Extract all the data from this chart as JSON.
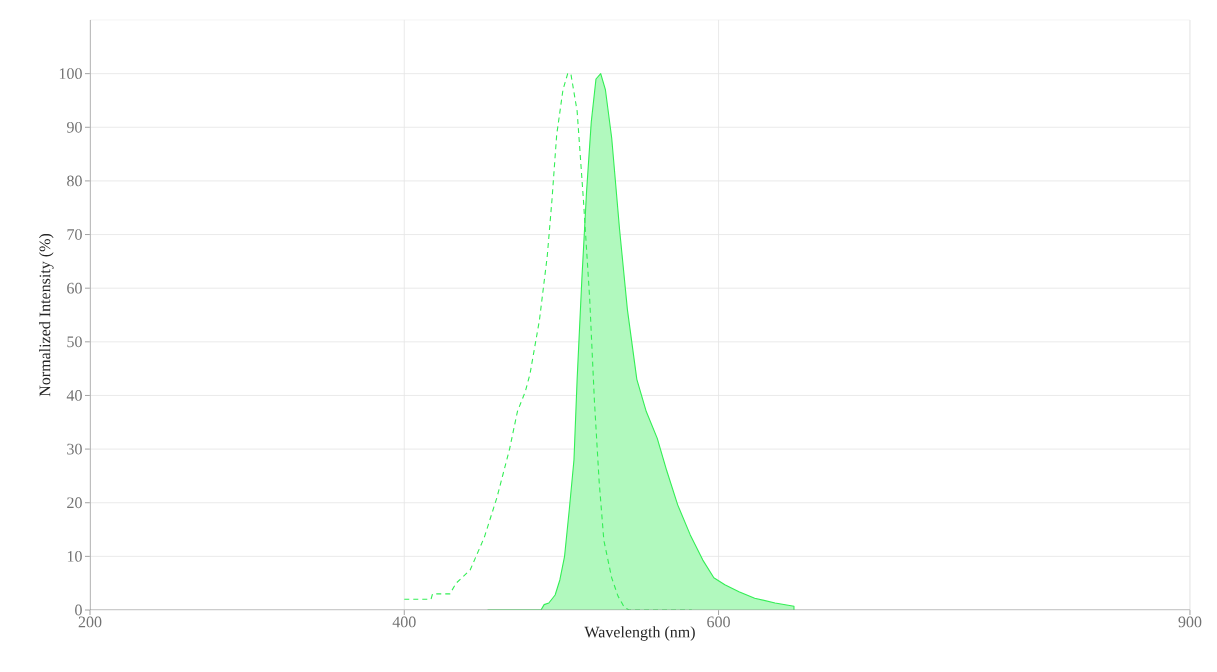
{
  "chart_data": {
    "type": "area",
    "xlabel": "Wavelength (nm)",
    "ylabel": "Normalized Intensity (%)",
    "xlim": [
      200,
      900
    ],
    "ylim": [
      0,
      110
    ],
    "xticks": [
      200,
      400,
      600,
      900
    ],
    "yticks": [
      0,
      10,
      20,
      30,
      40,
      50,
      60,
      70,
      80,
      90,
      100
    ],
    "grid": true,
    "legend": false,
    "marker": "none",
    "series": [
      {
        "color": "#33ee55",
        "x": [
          453,
          487,
          489,
          492,
          496,
          499,
          502,
          505,
          508,
          510,
          513,
          516,
          519,
          522,
          525,
          528,
          532,
          537,
          542,
          548,
          554,
          561,
          567,
          574,
          582,
          590,
          597,
          604,
          613,
          623,
          636,
          648,
          648
        ],
        "values": [
          0,
          0,
          1,
          1.3,
          2.8,
          5.6,
          10,
          18.7,
          28,
          43,
          61.6,
          78,
          91,
          99,
          100,
          97,
          88,
          71,
          56,
          43,
          37,
          32,
          26,
          19.6,
          14,
          9.3,
          6,
          4.7,
          3.4,
          2.2,
          1.3,
          0.7,
          0
        ]
      },
      {
        "type": "line",
        "line_style": "dashed",
        "color": "#33ee55",
        "x": [
          400,
          417,
          418,
          429,
          433,
          442,
          451,
          459,
          467,
          472,
          477,
          480,
          486,
          491,
          494,
          497,
          501,
          504,
          506,
          510,
          514,
          518,
          521,
          524,
          527,
          532,
          536,
          540,
          543,
          583
        ],
        "values": [
          2,
          2,
          3,
          3,
          5,
          7.5,
          13.6,
          21,
          30,
          37,
          40.7,
          44,
          54,
          66,
          76.5,
          88.6,
          97,
          100,
          100,
          93,
          76.5,
          58,
          39,
          24,
          13,
          6,
          2.6,
          0.5,
          0,
          0
        ]
      }
    ]
  }
}
